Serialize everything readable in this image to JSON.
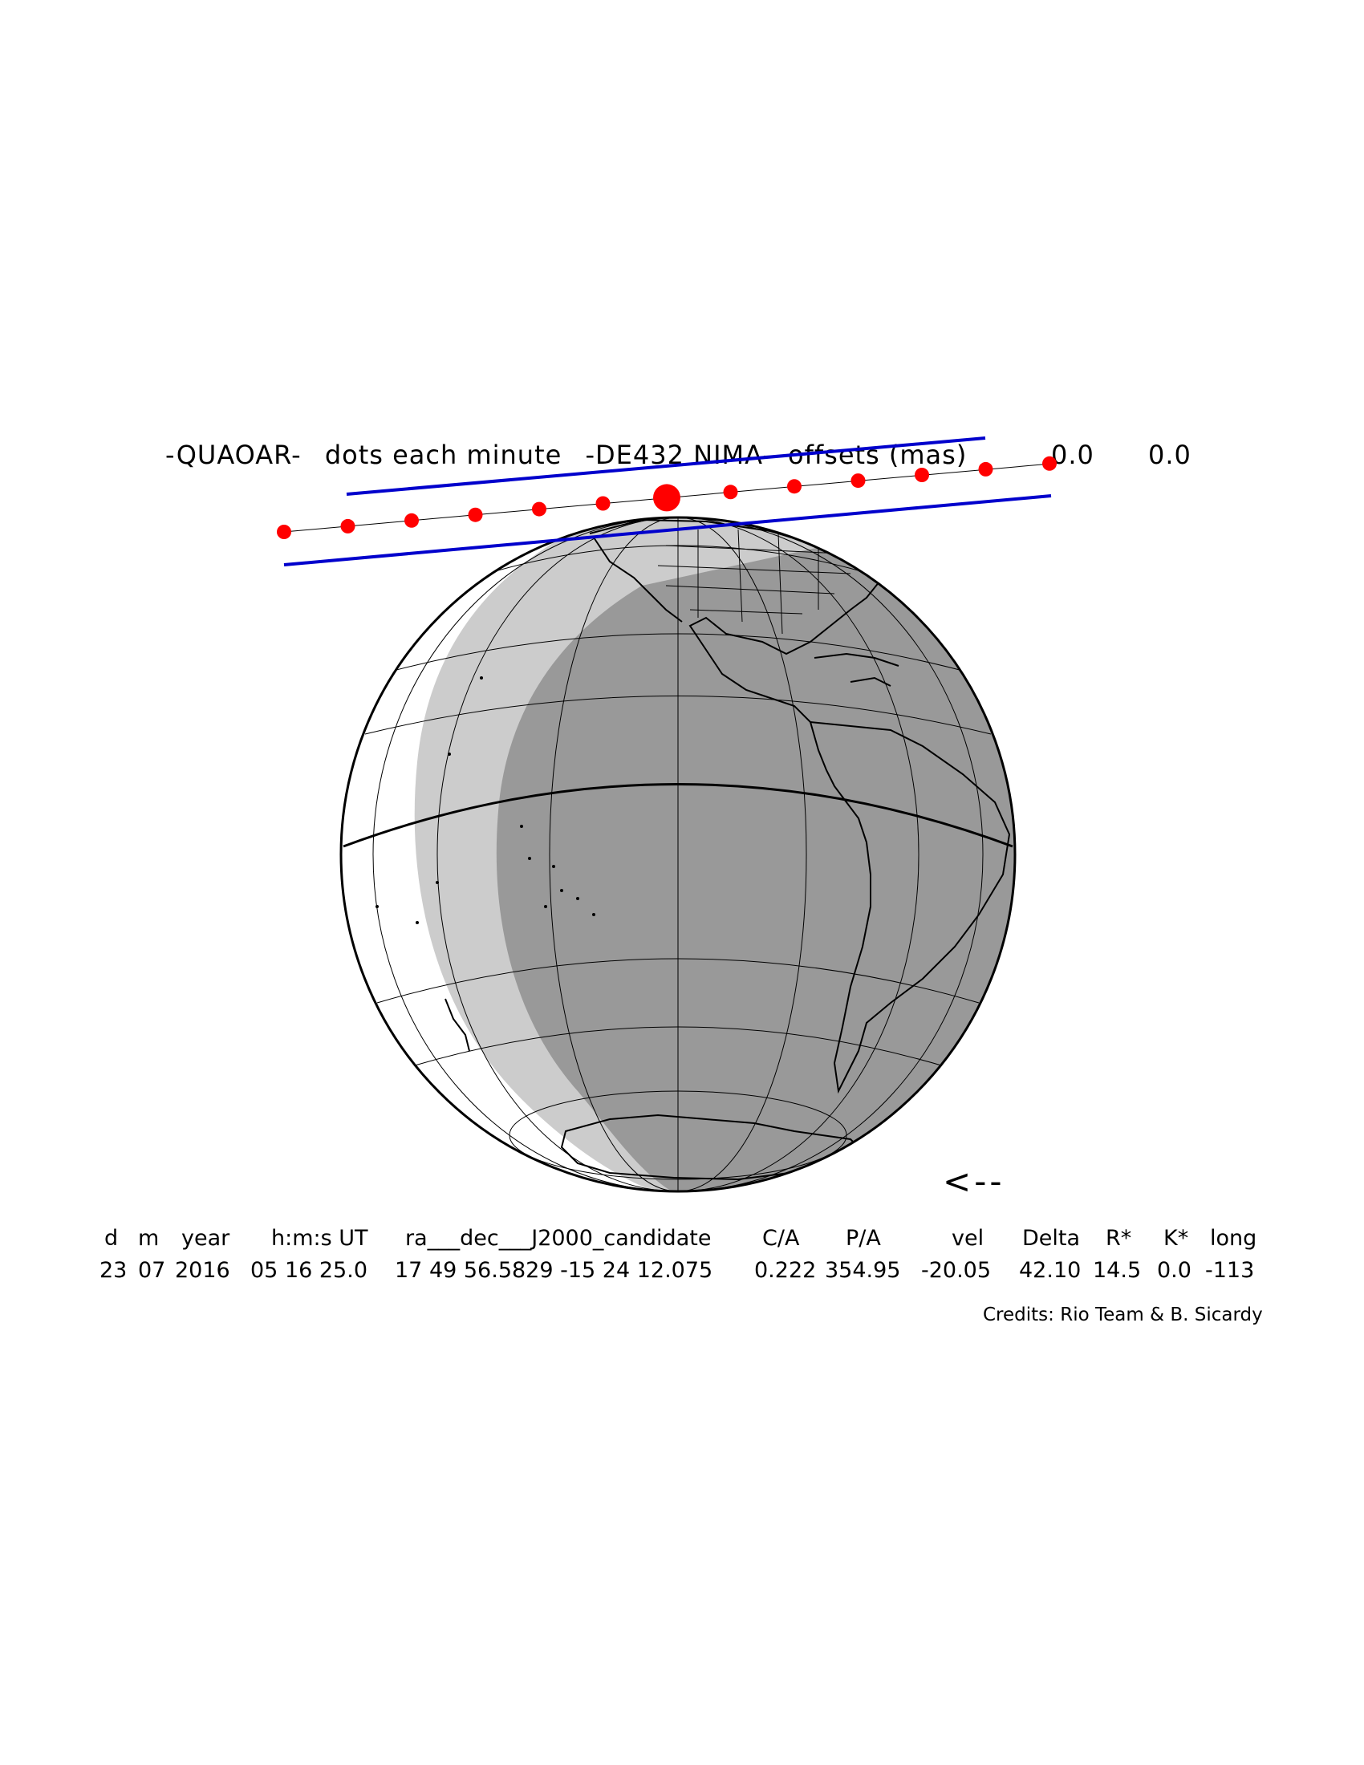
{
  "header": {
    "object": "-QUAOAR-",
    "dots_note": "dots each minute",
    "ephemeris": "-DE432 NIMA-",
    "offsets_label": "offsets (mas)",
    "offset_ra": "0.0",
    "offset_dec": "0.0"
  },
  "arrow": "<--",
  "table": {
    "headers": [
      "d",
      "m",
      "year",
      "h:m:s UT",
      "ra___dec___J2000_candidate",
      "C/A",
      "P/A",
      "vel",
      "Delta",
      "R*",
      "K*",
      "long"
    ],
    "values": [
      "23",
      "07",
      "2016",
      "05 16 25.0",
      "17 49 56.5829 -15 24 12.075",
      "0.222",
      "354.95",
      "-20.05",
      "42.10",
      "14.5",
      "0.0",
      "-113"
    ]
  },
  "credits": "Credits: Rio Team & B. Sicardy",
  "colors": {
    "path_dots": "#ff0000",
    "shadow_limits": "#0000cc",
    "night_side": "#999999",
    "twilight": "#cccccc",
    "day_side": "#ffffff"
  }
}
